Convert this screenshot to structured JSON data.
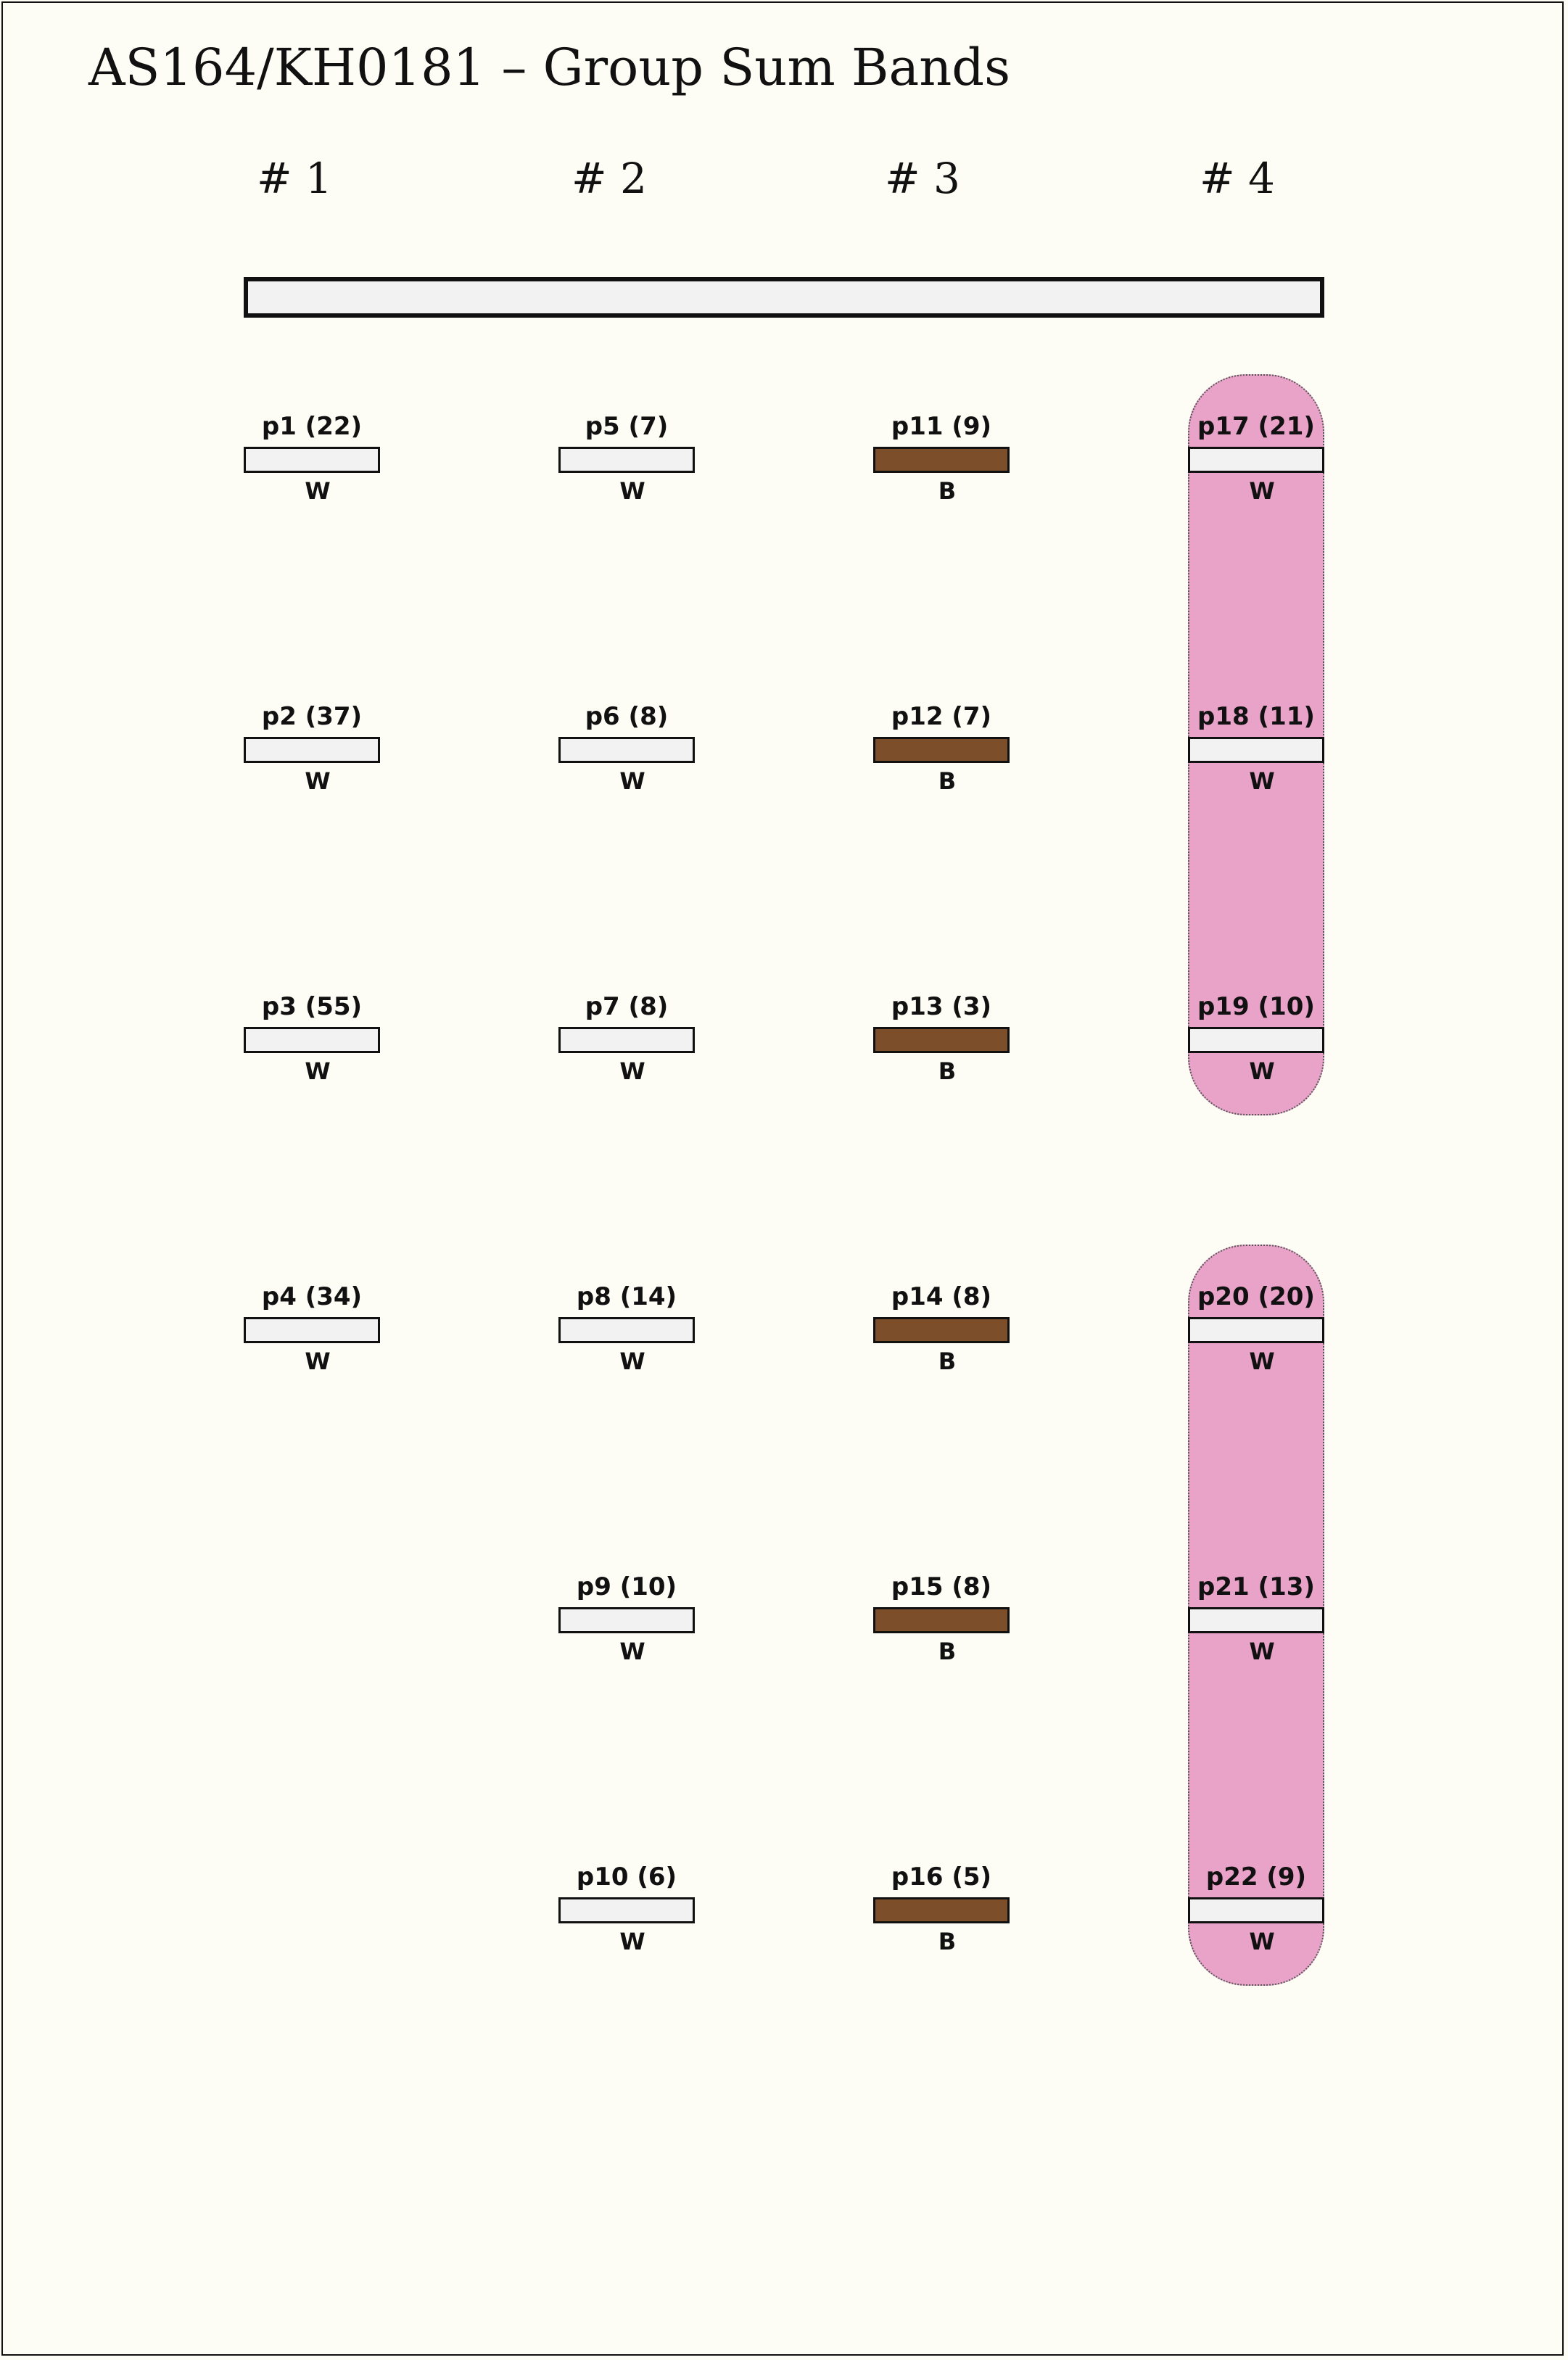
{
  "title": "AS164/KH0181 – Group Sum Bands",
  "columns": [
    "# 1",
    "# 2",
    "# 3",
    "# 4"
  ],
  "colors": {
    "W": "#f2f2f2",
    "B": "#7d4e2a",
    "highlight": "#e9a2c8"
  },
  "bands": [
    {
      "label": "p1 (22)",
      "code": "W",
      "col": 0,
      "row": 0
    },
    {
      "label": "p2 (37)",
      "code": "W",
      "col": 0,
      "row": 1
    },
    {
      "label": "p3 (55)",
      "code": "W",
      "col": 0,
      "row": 2
    },
    {
      "label": "p4 (34)",
      "code": "W",
      "col": 0,
      "row": 3
    },
    {
      "label": "p5 (7)",
      "code": "W",
      "col": 1,
      "row": 0
    },
    {
      "label": "p6 (8)",
      "code": "W",
      "col": 1,
      "row": 1
    },
    {
      "label": "p7 (8)",
      "code": "W",
      "col": 1,
      "row": 2
    },
    {
      "label": "p8 (14)",
      "code": "W",
      "col": 1,
      "row": 3
    },
    {
      "label": "p9 (10)",
      "code": "W",
      "col": 1,
      "row": 4
    },
    {
      "label": "p10 (6)",
      "code": "W",
      "col": 1,
      "row": 5
    },
    {
      "label": "p11 (9)",
      "code": "B",
      "col": 2,
      "row": 0
    },
    {
      "label": "p12 (7)",
      "code": "B",
      "col": 2,
      "row": 1
    },
    {
      "label": "p13 (3)",
      "code": "B",
      "col": 2,
      "row": 2
    },
    {
      "label": "p14 (8)",
      "code": "B",
      "col": 2,
      "row": 3
    },
    {
      "label": "p15 (8)",
      "code": "B",
      "col": 2,
      "row": 4
    },
    {
      "label": "p16 (5)",
      "code": "B",
      "col": 2,
      "row": 5
    },
    {
      "label": "p17 (21)",
      "code": "W",
      "col": 3,
      "row": 0
    },
    {
      "label": "p18 (11)",
      "code": "W",
      "col": 3,
      "row": 1
    },
    {
      "label": "p19 (10)",
      "code": "W",
      "col": 3,
      "row": 2
    },
    {
      "label": "p20 (20)",
      "code": "W",
      "col": 3,
      "row": 3
    },
    {
      "label": "p21 (13)",
      "code": "W",
      "col": 3,
      "row": 4
    },
    {
      "label": "p22 (9)",
      "code": "W",
      "col": 3,
      "row": 5
    }
  ],
  "groups": [
    {
      "col": 3,
      "rows": [
        0,
        2
      ]
    },
    {
      "col": 3,
      "rows": [
        3,
        5
      ]
    }
  ]
}
